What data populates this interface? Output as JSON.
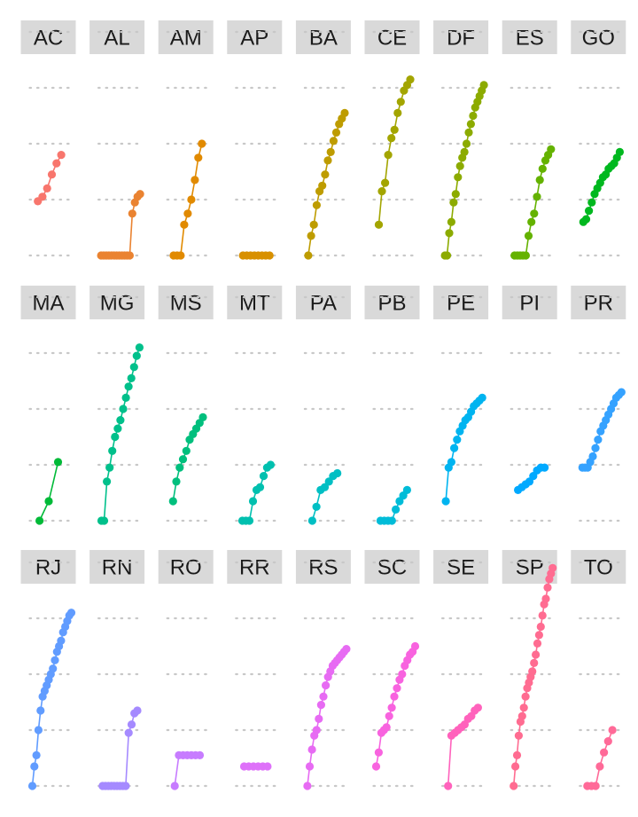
{
  "chart_data": {
    "type": "line",
    "layout": "facet_wrap",
    "ncol": 9,
    "title": "",
    "xlabel": "",
    "ylabel": "",
    "ylim": [
      0,
      4.5
    ],
    "y_gridlines": [
      0,
      1,
      2,
      3,
      4
    ],
    "grid": "dotted-horizontal",
    "legend": "none",
    "panels": [
      {
        "name": "AC",
        "color": "#F8766D",
        "x": [
          1,
          2,
          3,
          4,
          5,
          6
        ],
        "y": [
          0.97,
          1.05,
          1.2,
          1.45,
          1.65,
          1.8
        ]
      },
      {
        "name": "AL",
        "color": "#EA8331",
        "x": [
          1,
          2,
          3,
          4,
          5,
          6,
          7,
          8,
          9,
          10,
          11,
          12,
          13,
          14,
          15,
          16
        ],
        "y": [
          0,
          0,
          0,
          0,
          0,
          0,
          0,
          0,
          0,
          0,
          0,
          0,
          0.75,
          0.95,
          1.05,
          1.1
        ]
      },
      {
        "name": "AM",
        "color": "#E18A00",
        "x": [
          1,
          2,
          3,
          4,
          5,
          6,
          7,
          8,
          9
        ],
        "y": [
          0,
          0,
          0,
          0.55,
          0.75,
          1.0,
          1.35,
          1.75,
          2.0
        ]
      },
      {
        "name": "AP",
        "color": "#D89000",
        "x": [
          1,
          2,
          3,
          4,
          5,
          6,
          7,
          8
        ],
        "y": [
          0,
          0,
          0,
          0,
          0,
          0,
          0,
          0
        ]
      },
      {
        "name": "BA",
        "color": "#BE9C00",
        "x": [
          1,
          2,
          3,
          4,
          5,
          6,
          7,
          8,
          9,
          10,
          11,
          12,
          13,
          14
        ],
        "y": [
          0,
          0.35,
          0.55,
          0.9,
          1.15,
          1.25,
          1.45,
          1.7,
          1.85,
          2.05,
          2.2,
          2.35,
          2.45,
          2.55
        ]
      },
      {
        "name": "CE",
        "color": "#A3A500",
        "x": [
          1,
          2,
          3,
          4,
          5,
          6,
          7,
          8,
          9,
          10,
          11
        ],
        "y": [
          0.55,
          1.15,
          1.3,
          1.8,
          2.1,
          2.25,
          2.55,
          2.75,
          2.95,
          3.05,
          3.15
        ]
      },
      {
        "name": "DF",
        "color": "#8CAB00",
        "x": [
          1,
          2,
          3,
          4,
          5,
          6,
          7,
          8,
          9,
          10,
          11,
          12,
          13,
          14,
          15,
          16,
          17,
          18,
          19
        ],
        "y": [
          0,
          0,
          0.4,
          0.6,
          0.95,
          1.1,
          1.4,
          1.6,
          1.75,
          1.85,
          2.0,
          2.2,
          2.35,
          2.5,
          2.65,
          2.75,
          2.85,
          2.95,
          3.05
        ]
      },
      {
        "name": "ES",
        "color": "#64B200",
        "x": [
          1,
          2,
          3,
          4,
          5,
          6,
          7,
          8,
          9,
          10,
          11,
          12,
          13,
          14
        ],
        "y": [
          0,
          0,
          0,
          0,
          0,
          0.35,
          0.6,
          0.75,
          1.05,
          1.35,
          1.55,
          1.7,
          1.8,
          1.9
        ]
      },
      {
        "name": "GO",
        "color": "#00B81F",
        "x": [
          1,
          2,
          3,
          4,
          5,
          6,
          7,
          8,
          9,
          10,
          11,
          12,
          13,
          14
        ],
        "y": [
          0.6,
          0.65,
          0.8,
          0.95,
          1.1,
          1.2,
          1.3,
          1.4,
          1.45,
          1.55,
          1.6,
          1.65,
          1.75,
          1.85
        ]
      },
      {
        "name": "MA",
        "color": "#00BA38",
        "x": [
          1,
          2,
          3
        ],
        "y": [
          0,
          0.35,
          1.05
        ]
      },
      {
        "name": "MG",
        "color": "#00C08B",
        "x": [
          1,
          2,
          3,
          4,
          5,
          6,
          7,
          8,
          9,
          10,
          11,
          12,
          13,
          14,
          15
        ],
        "y": [
          0,
          0,
          0.7,
          0.95,
          1.25,
          1.5,
          1.65,
          1.8,
          2.0,
          2.2,
          2.4,
          2.55,
          2.75,
          2.95,
          3.1
        ]
      },
      {
        "name": "MS",
        "color": "#00BF7D",
        "x": [
          1,
          2,
          3,
          4,
          5,
          6,
          7,
          8,
          9,
          10
        ],
        "y": [
          0.35,
          0.7,
          0.95,
          1.1,
          1.25,
          1.45,
          1.55,
          1.65,
          1.75,
          1.85
        ]
      },
      {
        "name": "MT",
        "color": "#00C0AF",
        "x": [
          1,
          2,
          3,
          4,
          5,
          6,
          7,
          8,
          9
        ],
        "y": [
          0,
          0,
          0,
          0.35,
          0.55,
          0.6,
          0.8,
          0.95,
          1.0
        ]
      },
      {
        "name": "PA",
        "color": "#00BFC4",
        "x": [
          1,
          2,
          3,
          4,
          5,
          6,
          7
        ],
        "y": [
          0,
          0.25,
          0.55,
          0.6,
          0.7,
          0.8,
          0.85
        ]
      },
      {
        "name": "PB",
        "color": "#00BCD8",
        "x": [
          1,
          2,
          3,
          4,
          5,
          6,
          7,
          8
        ],
        "y": [
          0,
          0,
          0,
          0,
          0.2,
          0.35,
          0.45,
          0.55
        ]
      },
      {
        "name": "PE",
        "color": "#00B4F0",
        "x": [
          1,
          2,
          3,
          4,
          5,
          6,
          7,
          8,
          9,
          10,
          11,
          12,
          13,
          14
        ],
        "y": [
          0.35,
          0.95,
          1.05,
          1.3,
          1.45,
          1.6,
          1.7,
          1.8,
          1.85,
          1.95,
          2.05,
          2.1,
          2.15,
          2.2
        ]
      },
      {
        "name": "PI",
        "color": "#00A9FF",
        "x": [
          1,
          2,
          3,
          4,
          5,
          6,
          7,
          8
        ],
        "y": [
          0.55,
          0.6,
          0.65,
          0.7,
          0.8,
          0.9,
          0.95,
          0.95
        ]
      },
      {
        "name": "PR",
        "color": "#35A2FF",
        "x": [
          1,
          2,
          3,
          4,
          5,
          6,
          7,
          8,
          9,
          10,
          11,
          12,
          13,
          14,
          15,
          16
        ],
        "y": [
          0.95,
          0.95,
          0.95,
          1.05,
          1.15,
          1.3,
          1.45,
          1.6,
          1.7,
          1.8,
          1.9,
          2.0,
          2.1,
          2.2,
          2.25,
          2.3
        ]
      },
      {
        "name": "RJ",
        "color": "#619CFF",
        "x": [
          1,
          2,
          3,
          4,
          5,
          6,
          7,
          8,
          9,
          10,
          11,
          12,
          13,
          14,
          15,
          16,
          17,
          18,
          19,
          20
        ],
        "y": [
          0,
          0.35,
          0.55,
          1.0,
          1.35,
          1.6,
          1.7,
          1.8,
          1.9,
          2.0,
          2.1,
          2.25,
          2.4,
          2.5,
          2.6,
          2.75,
          2.85,
          2.95,
          3.05,
          3.1
        ]
      },
      {
        "name": "RN",
        "color": "#A58AFF",
        "x": [
          1,
          2,
          3,
          4,
          5,
          6,
          7,
          8,
          9,
          10,
          11,
          12,
          13
        ],
        "y": [
          0,
          0,
          0,
          0,
          0,
          0,
          0,
          0,
          0,
          0.95,
          1.1,
          1.3,
          1.35
        ]
      },
      {
        "name": "RO",
        "color": "#C77CFF",
        "x": [
          1,
          2,
          3,
          4,
          5,
          6,
          7
        ],
        "y": [
          0,
          0.55,
          0.55,
          0.55,
          0.55,
          0.55,
          0.55
        ]
      },
      {
        "name": "RR",
        "color": "#DE71F9",
        "x": [
          1,
          2,
          3,
          4,
          5,
          6
        ],
        "y": [
          0.35,
          0.35,
          0.35,
          0.35,
          0.35,
          0.35
        ]
      },
      {
        "name": "RS",
        "color": "#E76BF3",
        "x": [
          1,
          2,
          3,
          4,
          5,
          6,
          7,
          8,
          9,
          10,
          11,
          12,
          13,
          14,
          15,
          16,
          17,
          18
        ],
        "y": [
          0,
          0.35,
          0.65,
          0.9,
          1.0,
          1.2,
          1.45,
          1.6,
          1.8,
          1.95,
          2.05,
          2.15,
          2.2,
          2.25,
          2.3,
          2.35,
          2.4,
          2.45
        ]
      },
      {
        "name": "SC",
        "color": "#F863DF",
        "x": [
          1,
          2,
          3,
          4,
          5,
          6,
          7,
          8,
          9,
          10,
          11,
          12,
          13,
          14,
          15,
          16
        ],
        "y": [
          0.35,
          0.6,
          0.95,
          1.0,
          1.05,
          1.25,
          1.4,
          1.6,
          1.75,
          1.9,
          2.0,
          2.15,
          2.25,
          2.35,
          2.4,
          2.5
        ]
      },
      {
        "name": "SE",
        "color": "#FF62BC",
        "x": [
          1,
          2,
          3,
          4,
          5,
          6,
          7,
          8,
          9,
          10
        ],
        "y": [
          0,
          0.9,
          0.95,
          1.0,
          1.05,
          1.1,
          1.2,
          1.25,
          1.35,
          1.4
        ]
      },
      {
        "name": "SP",
        "color": "#FF6C91",
        "x": [
          1,
          2,
          3,
          4,
          5,
          6,
          7,
          8,
          9,
          10,
          11,
          12,
          13,
          14,
          15,
          16,
          17,
          18,
          19,
          20,
          21,
          22,
          23,
          24
        ],
        "y": [
          0,
          0.35,
          0.55,
          0.9,
          1.15,
          1.25,
          1.4,
          1.6,
          1.75,
          1.85,
          1.95,
          2.05,
          2.2,
          2.35,
          2.55,
          2.7,
          2.85,
          3.05,
          3.25,
          3.35,
          3.55,
          3.7,
          3.8,
          3.9
        ]
      },
      {
        "name": "TO",
        "color": "#FF6A98",
        "x": [
          1,
          2,
          3,
          4,
          5,
          6,
          7
        ],
        "y": [
          0,
          0,
          0,
          0.35,
          0.6,
          0.8,
          1.0
        ]
      }
    ]
  }
}
